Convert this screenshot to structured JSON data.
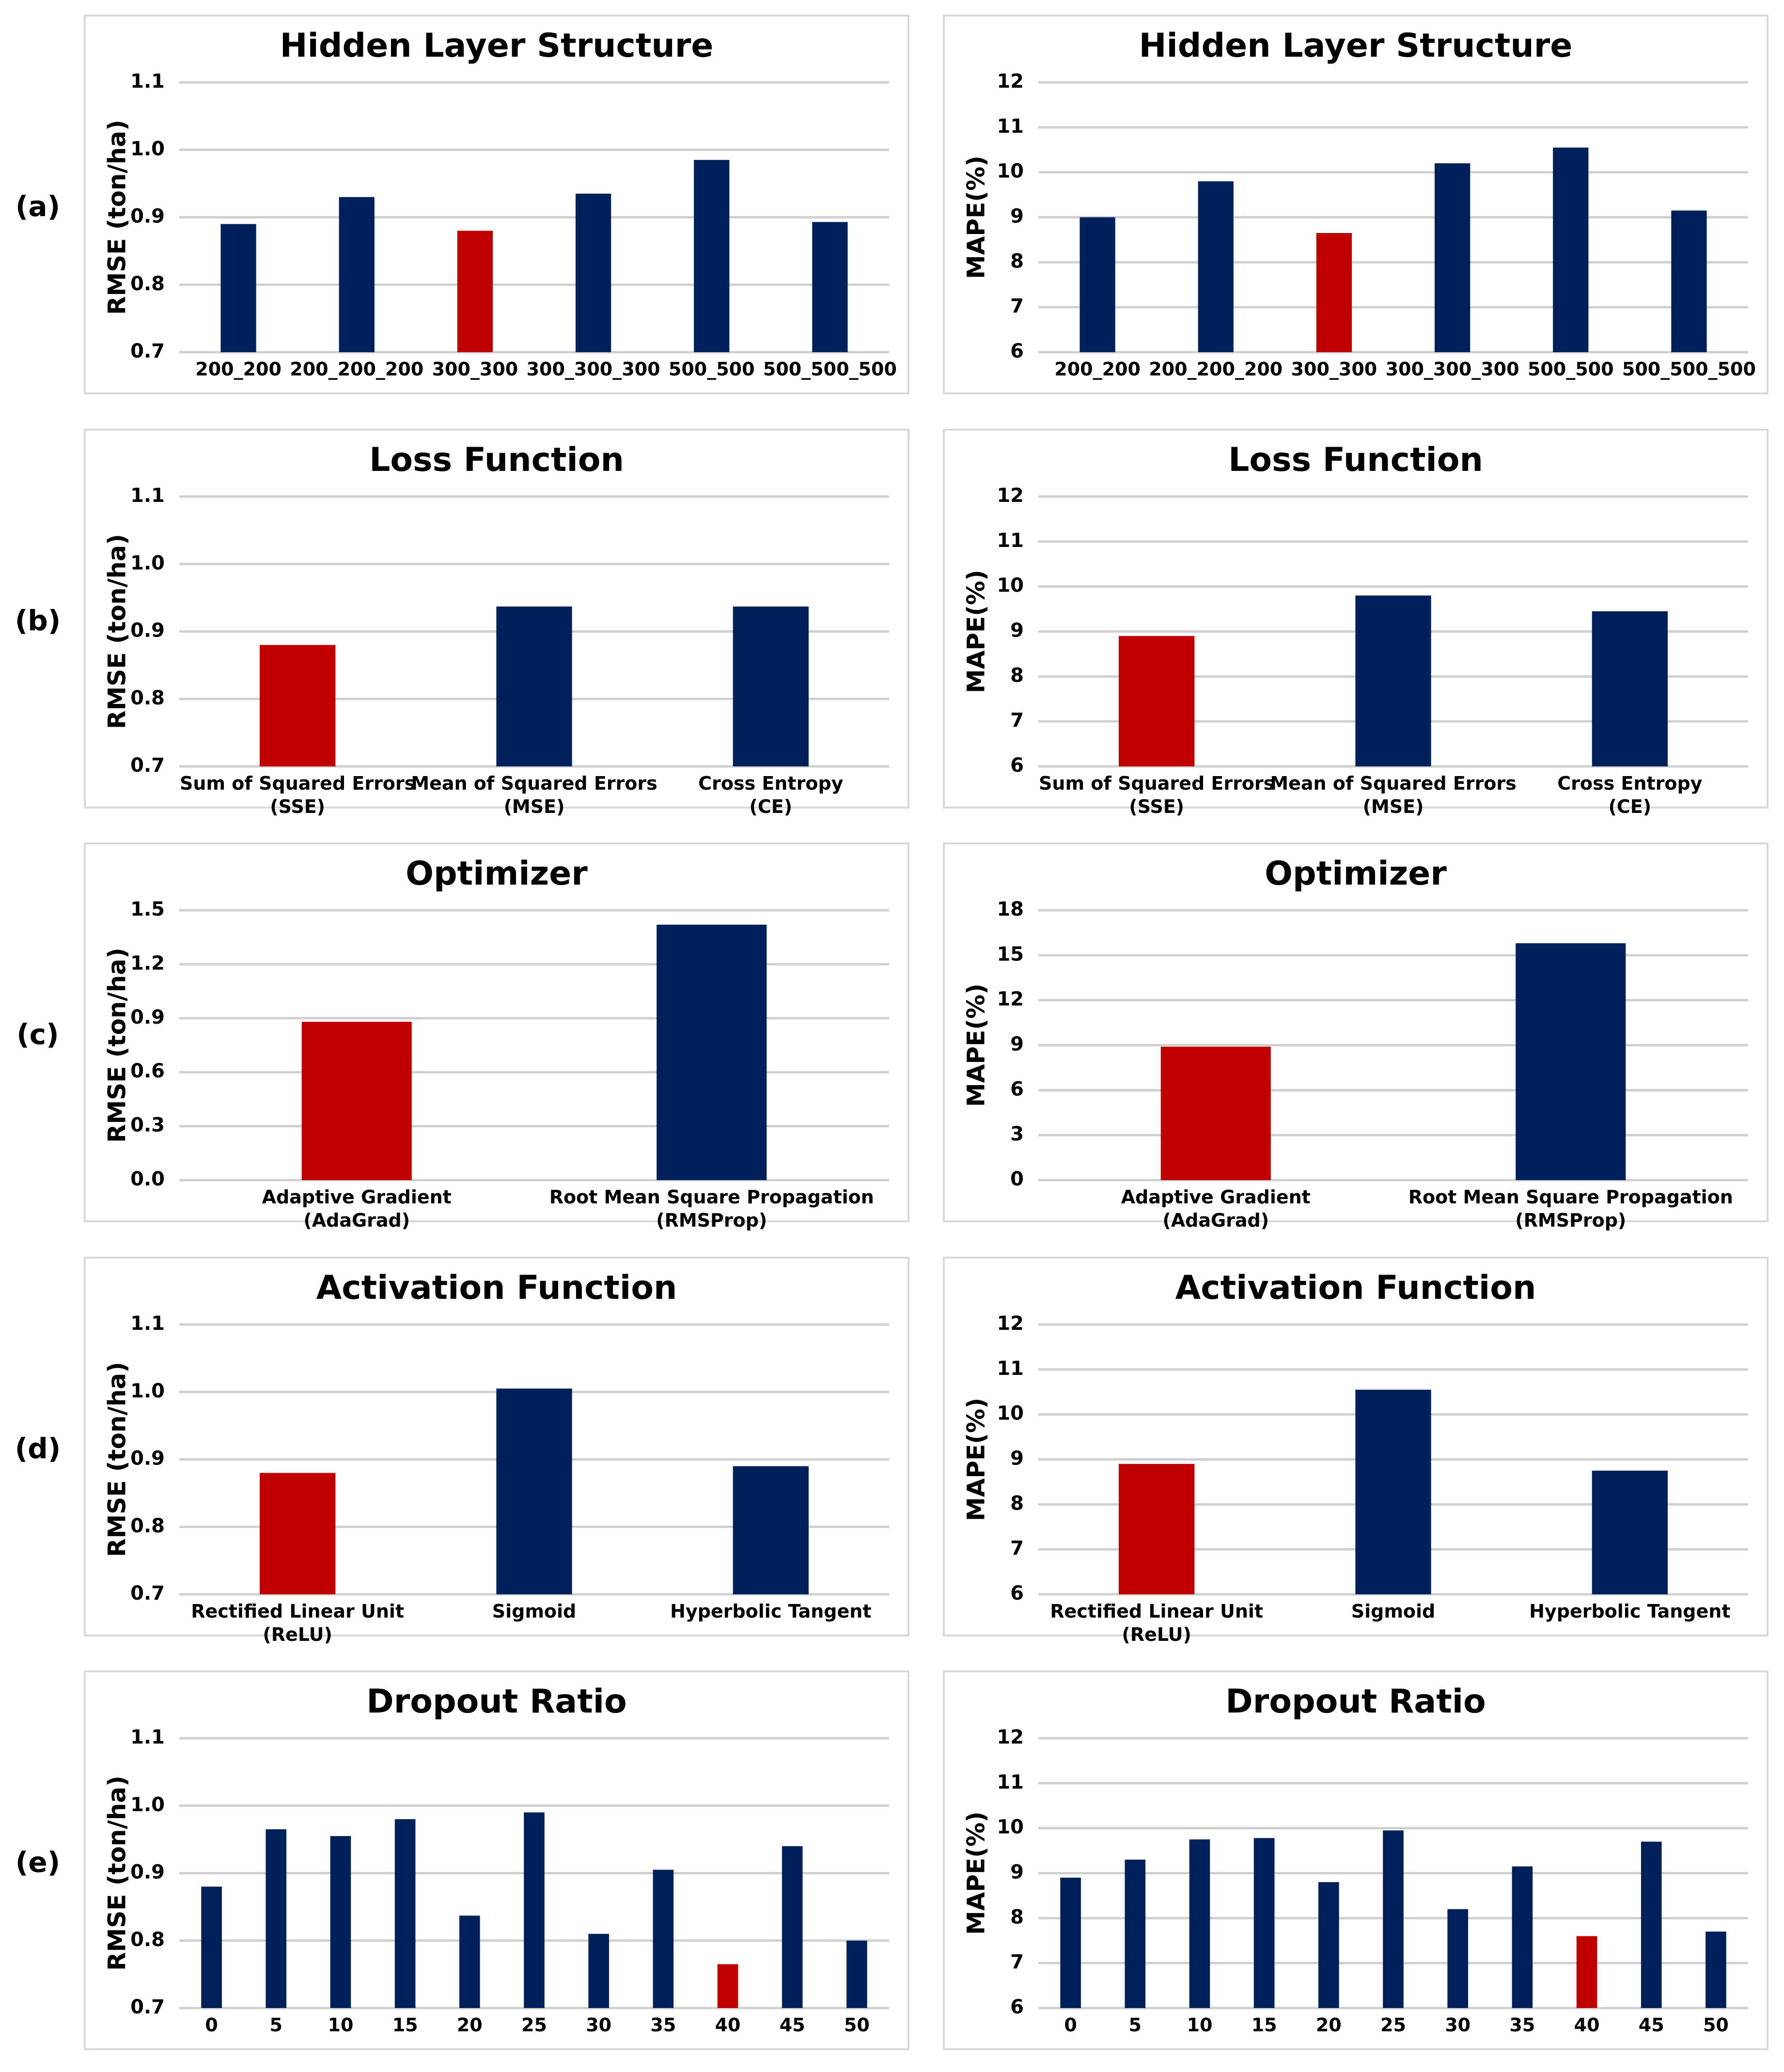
{
  "colors": {
    "bar": "#00205b",
    "highlight": "#c00000",
    "grid": "#d0d0d0",
    "frame": "#d9d9d9"
  },
  "row_labels": [
    "(a)",
    "(b)",
    "(c)",
    "(d)",
    "(e)"
  ],
  "chart_data": [
    {
      "type": "bar",
      "row": "(a)",
      "title": "Hidden Layer Structure",
      "ylabel": "RMSE (ton/ha)",
      "categories": [
        [
          "200_200"
        ],
        [
          "200_200_200"
        ],
        [
          "300_300"
        ],
        [
          "300_300_300"
        ],
        [
          "500_500"
        ],
        [
          "500_500_500"
        ]
      ],
      "values": [
        0.89,
        0.93,
        0.88,
        0.935,
        0.985,
        0.893
      ],
      "highlight_index": 2,
      "ylim": [
        0.7,
        1.1
      ],
      "yticks": [
        "0.7",
        "0.8",
        "0.9",
        "1.0",
        "1.1"
      ],
      "grid": true,
      "legend": "none"
    },
    {
      "type": "bar",
      "row": "(a)",
      "title": "Hidden Layer Structure",
      "ylabel": "MAPE(%)",
      "categories": [
        [
          "200_200"
        ],
        [
          "200_200_200"
        ],
        [
          "300_300"
        ],
        [
          "300_300_300"
        ],
        [
          "500_500"
        ],
        [
          "500_500_500"
        ]
      ],
      "values": [
        9.0,
        9.8,
        8.65,
        10.2,
        10.55,
        9.15
      ],
      "highlight_index": 2,
      "ylim": [
        6,
        12
      ],
      "yticks": [
        "6",
        "7",
        "8",
        "9",
        "10",
        "11",
        "12"
      ],
      "grid": true,
      "legend": "none"
    },
    {
      "type": "bar",
      "row": "(b)",
      "title": "Loss Function",
      "ylabel": "RMSE (ton/ha)",
      "categories": [
        [
          "Sum of Squared Errors",
          "(SSE)"
        ],
        [
          "Mean of Squared Errors",
          "(MSE)"
        ],
        [
          "Cross Entropy",
          "(CE)"
        ]
      ],
      "values": [
        0.88,
        0.937,
        0.937
      ],
      "highlight_index": 0,
      "ylim": [
        0.7,
        1.1
      ],
      "yticks": [
        "0.7",
        "0.8",
        "0.9",
        "1.0",
        "1.1"
      ],
      "grid": true,
      "legend": "none"
    },
    {
      "type": "bar",
      "row": "(b)",
      "title": "Loss Function",
      "ylabel": "MAPE(%)",
      "categories": [
        [
          "Sum of Squared Errors",
          "(SSE)"
        ],
        [
          "Mean of Squared Errors",
          "(MSE)"
        ],
        [
          "Cross Entropy",
          "(CE)"
        ]
      ],
      "values": [
        8.9,
        9.8,
        9.45
      ],
      "highlight_index": 0,
      "ylim": [
        6,
        12
      ],
      "yticks": [
        "6",
        "7",
        "8",
        "9",
        "10",
        "11",
        "12"
      ],
      "grid": true,
      "legend": "none"
    },
    {
      "type": "bar",
      "row": "(c)",
      "title": "Optimizer",
      "ylabel": "RMSE (ton/ha)",
      "categories": [
        [
          "Adaptive Gradient",
          "(AdaGrad)"
        ],
        [
          "Root Mean Square Propagation",
          "(RMSProp)"
        ]
      ],
      "values": [
        0.88,
        1.42
      ],
      "highlight_index": 0,
      "ylim": [
        0,
        1.5
      ],
      "yticks": [
        "0.0",
        "0.3",
        "0.6",
        "0.9",
        "1.2",
        "1.5"
      ],
      "grid": true,
      "legend": "none"
    },
    {
      "type": "bar",
      "row": "(c)",
      "title": "Optimizer",
      "ylabel": "MAPE(%)",
      "categories": [
        [
          "Adaptive Gradient",
          "(AdaGrad)"
        ],
        [
          "Root Mean Square Propagation",
          "(RMSProp)"
        ]
      ],
      "values": [
        8.9,
        15.8
      ],
      "highlight_index": 0,
      "ylim": [
        0,
        18
      ],
      "yticks": [
        "0",
        "3",
        "6",
        "9",
        "12",
        "15",
        "18"
      ],
      "grid": true,
      "legend": "none"
    },
    {
      "type": "bar",
      "row": "(d)",
      "title": "Activation Function",
      "ylabel": "RMSE (ton/ha)",
      "categories": [
        [
          "Rectified Linear Unit",
          "(ReLU)"
        ],
        [
          "Sigmoid"
        ],
        [
          "Hyperbolic Tangent"
        ]
      ],
      "values": [
        0.88,
        1.005,
        0.89
      ],
      "highlight_index": 0,
      "ylim": [
        0.7,
        1.1
      ],
      "yticks": [
        "0.7",
        "0.8",
        "0.9",
        "1.0",
        "1.1"
      ],
      "grid": true,
      "legend": "none"
    },
    {
      "type": "bar",
      "row": "(d)",
      "title": "Activation Function",
      "ylabel": "MAPE(%)",
      "categories": [
        [
          "Rectified Linear Unit",
          "(ReLU)"
        ],
        [
          "Sigmoid"
        ],
        [
          "Hyperbolic Tangent"
        ]
      ],
      "values": [
        8.9,
        10.55,
        8.75
      ],
      "highlight_index": 0,
      "ylim": [
        6,
        12
      ],
      "yticks": [
        "6",
        "7",
        "8",
        "9",
        "10",
        "11",
        "12"
      ],
      "grid": true,
      "legend": "none"
    },
    {
      "type": "bar",
      "row": "(e)",
      "title": "Dropout Ratio",
      "ylabel": "RMSE (ton/ha)",
      "categories": [
        [
          "0"
        ],
        [
          "5"
        ],
        [
          "10"
        ],
        [
          "15"
        ],
        [
          "20"
        ],
        [
          "25"
        ],
        [
          "30"
        ],
        [
          "35"
        ],
        [
          "40"
        ],
        [
          "45"
        ],
        [
          "50"
        ]
      ],
      "values": [
        0.88,
        0.965,
        0.955,
        0.98,
        0.837,
        0.99,
        0.81,
        0.905,
        0.765,
        0.94,
        0.8
      ],
      "highlight_index": 8,
      "ylim": [
        0.7,
        1.1
      ],
      "yticks": [
        "0.7",
        "0.8",
        "0.9",
        "1.0",
        "1.1"
      ],
      "grid": true,
      "legend": "none"
    },
    {
      "type": "bar",
      "row": "(e)",
      "title": "Dropout Ratio",
      "ylabel": "MAPE(%)",
      "categories": [
        [
          "0"
        ],
        [
          "5"
        ],
        [
          "10"
        ],
        [
          "15"
        ],
        [
          "20"
        ],
        [
          "25"
        ],
        [
          "30"
        ],
        [
          "35"
        ],
        [
          "40"
        ],
        [
          "45"
        ],
        [
          "50"
        ]
      ],
      "values": [
        8.9,
        9.3,
        9.75,
        9.78,
        8.8,
        9.95,
        8.2,
        9.15,
        7.6,
        9.7,
        7.7
      ],
      "highlight_index": 8,
      "ylim": [
        6,
        12
      ],
      "yticks": [
        "6",
        "7",
        "8",
        "9",
        "10",
        "11",
        "12"
      ],
      "grid": true,
      "legend": "none"
    }
  ]
}
